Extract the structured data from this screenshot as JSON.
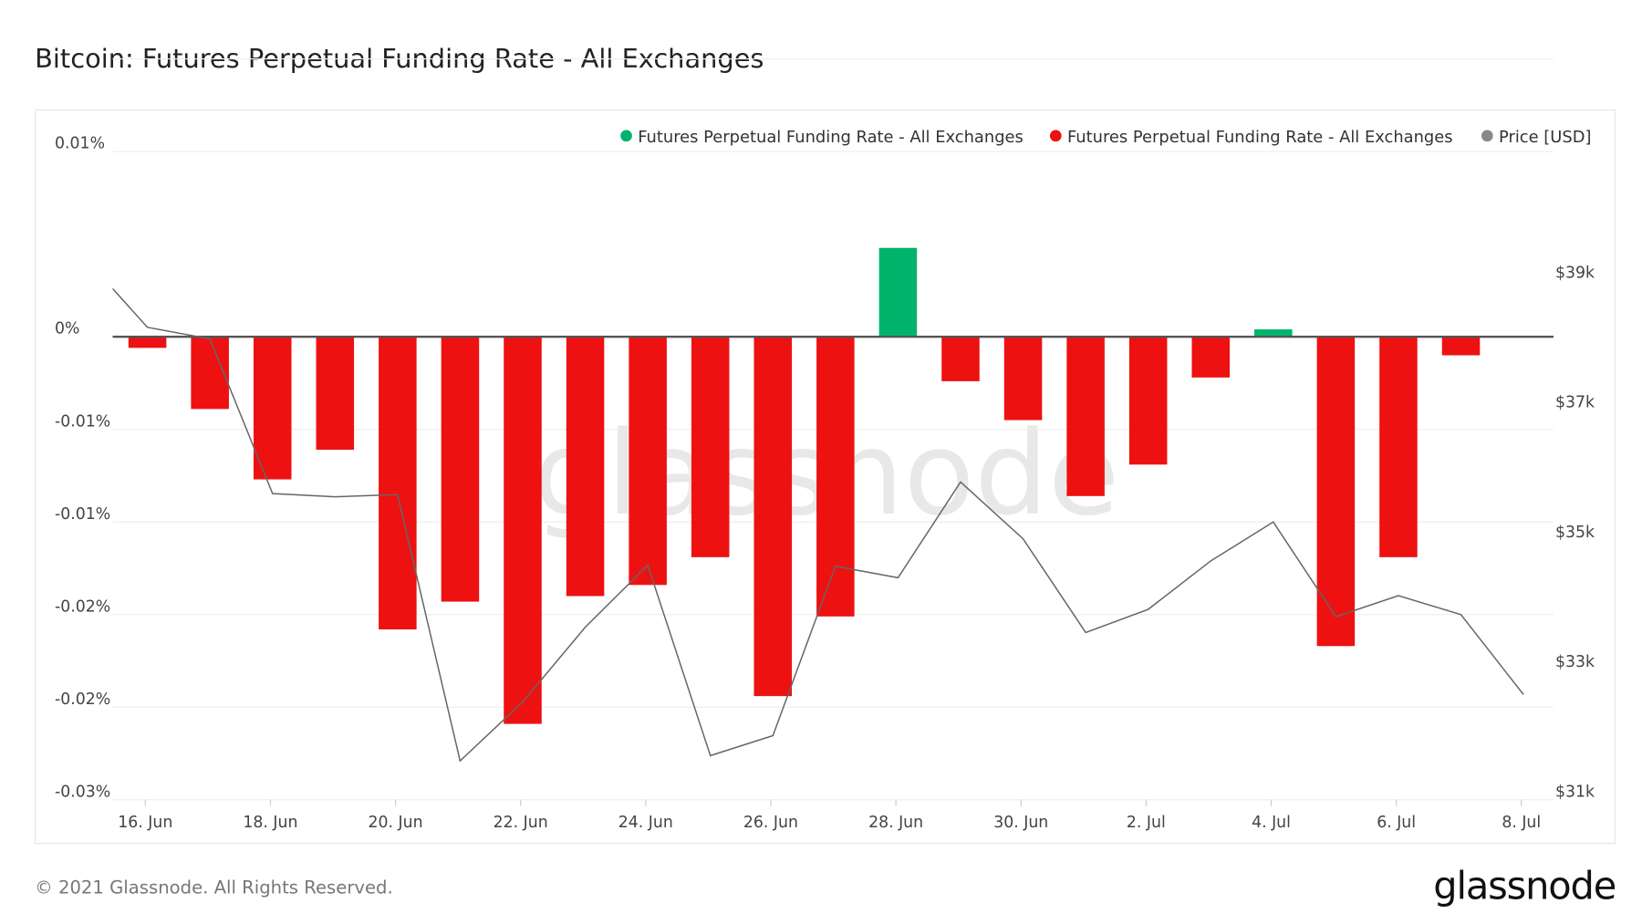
{
  "chart_data": {
    "type": "bar",
    "title": "Bitcoin: Futures Perpetual Funding Rate - All Exchanges",
    "legend": {
      "placement": "top-right",
      "entries": [
        {
          "name": "Futures Perpetual Funding Rate - All Exchanges",
          "color": "#00b36b"
        },
        {
          "name": "Futures Perpetual Funding Rate - All Exchanges",
          "color": "#ee1111"
        },
        {
          "name": "Price [USD]",
          "color": "#888888"
        }
      ]
    },
    "grid": true,
    "x_ticks": [
      "16. Jun",
      "18. Jun",
      "20. Jun",
      "22. Jun",
      "24. Jun",
      "26. Jun",
      "28. Jun",
      "30. Jun",
      "2. Jul",
      "4. Jul",
      "6. Jul",
      "8. Jul"
    ],
    "y_left": {
      "unit": "%",
      "ylim": [
        -0.03,
        0.015
      ],
      "ticks": [
        {
          "value": 0.01,
          "label": "0.01%"
        },
        {
          "value": 0,
          "label": "0%"
        },
        {
          "value": -0.005,
          "label": "-0.01%"
        },
        {
          "value": -0.01,
          "label": "-0.01%"
        },
        {
          "value": -0.015,
          "label": "-0.02%"
        },
        {
          "value": -0.02,
          "label": "-0.02%"
        },
        {
          "value": -0.025,
          "label": "-0.03%"
        }
      ]
    },
    "y_right": {
      "unit": "USD",
      "ticks": [
        {
          "value": 39000,
          "label": "$39k"
        },
        {
          "value": 37000,
          "label": "$37k"
        },
        {
          "value": 35000,
          "label": "$35k"
        },
        {
          "value": 33000,
          "label": "$33k"
        },
        {
          "value": 31000,
          "label": "$31k"
        }
      ]
    },
    "funding_rate": {
      "dates": [
        "16 Jun",
        "17 Jun",
        "18 Jun",
        "19 Jun",
        "20 Jun",
        "21 Jun",
        "22 Jun",
        "23 Jun",
        "24 Jun",
        "25 Jun",
        "26 Jun",
        "27 Jun",
        "28 Jun",
        "29 Jun",
        "30 Jun",
        "1 Jul",
        "2 Jul",
        "3 Jul",
        "4 Jul",
        "5 Jul",
        "6 Jul",
        "7 Jul"
      ],
      "values": [
        -0.0006,
        -0.0039,
        -0.0077,
        -0.0061,
        -0.0158,
        -0.0143,
        -0.0209,
        -0.014,
        -0.0134,
        -0.0119,
        -0.0194,
        -0.0151,
        0.0048,
        -0.0024,
        -0.0045,
        -0.0086,
        -0.0069,
        -0.0022,
        0.0004,
        -0.0167,
        -0.0119,
        -0.001
      ],
      "positive_color": "#00b36b",
      "negative_color": "#ee1111"
    },
    "price": {
      "dates": [
        "15 Jun",
        "16 Jun",
        "17 Jun",
        "18 Jun",
        "19 Jun",
        "20 Jun",
        "21 Jun",
        "22 Jun",
        "23 Jun",
        "24 Jun",
        "25 Jun",
        "26 Jun",
        "27 Jun",
        "28 Jun",
        "29 Jun",
        "30 Jun",
        "1 Jul",
        "2 Jul",
        "3 Jul",
        "4 Jul",
        "5 Jul",
        "6 Jul",
        "7 Jul",
        "8 Jul"
      ],
      "values": [
        39224,
        38154,
        37975,
        35590,
        35541,
        35574,
        31470,
        32379,
        33530,
        34487,
        31551,
        31860,
        34471,
        34293,
        35769,
        34893,
        33449,
        33806,
        34552,
        35152,
        33692,
        34017,
        33725,
        32492
      ],
      "color": "#666666"
    }
  },
  "footer": {
    "copyright": "© 2021 Glassnode. All Rights Reserved.",
    "logo": "glassnode"
  },
  "watermark": "glassnode"
}
